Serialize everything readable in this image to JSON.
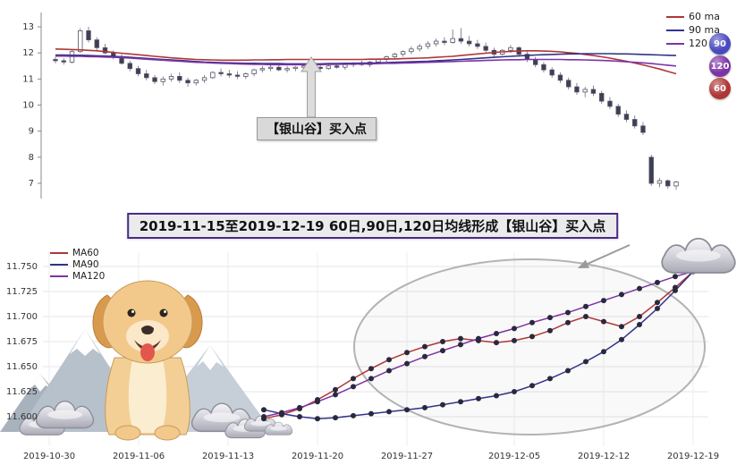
{
  "banner": {
    "text": "2019-11-15至2019-12-19 60日,90日,120日均线形成【银山谷】买入点"
  },
  "top_chart": {
    "annotation_label": "【银山谷】买入点",
    "legend": [
      {
        "label": "60 ma",
        "color": "#b03636"
      },
      {
        "label": "90 ma",
        "color": "#32328c"
      },
      {
        "label": "120 ma",
        "color": "#7c33a5"
      }
    ],
    "badges": [
      {
        "label": "90",
        "color": "#4a4ac0"
      },
      {
        "label": "120",
        "color": "#7c33a5"
      },
      {
        "label": "60",
        "color": "#b03636"
      }
    ]
  },
  "bottom_chart": {
    "legend": [
      {
        "label": "MA60",
        "color": "#b03636"
      },
      {
        "label": "MA90",
        "color": "#32328c"
      },
      {
        "label": "MA120",
        "color": "#7c33a5"
      }
    ]
  },
  "chart_data": [
    {
      "type": "candlestick",
      "title": "",
      "ylim": [
        6.5,
        13.4
      ],
      "y_ticks": [
        7,
        8,
        9,
        10,
        11,
        12,
        13
      ],
      "x_axis": "hidden",
      "candles_ohlc": [
        [
          11.75,
          11.85,
          11.6,
          11.7
        ],
        [
          11.7,
          11.8,
          11.55,
          11.65
        ],
        [
          11.65,
          12.1,
          11.6,
          12.05
        ],
        [
          12.05,
          12.95,
          12.0,
          12.85
        ],
        [
          12.85,
          13.0,
          12.4,
          12.5
        ],
        [
          12.5,
          12.6,
          12.1,
          12.2
        ],
        [
          12.2,
          12.35,
          11.95,
          12.0
        ],
        [
          12.0,
          12.1,
          11.75,
          11.85
        ],
        [
          11.85,
          11.95,
          11.55,
          11.6
        ],
        [
          11.6,
          11.7,
          11.3,
          11.4
        ],
        [
          11.4,
          11.5,
          11.1,
          11.2
        ],
        [
          11.2,
          11.35,
          10.95,
          11.05
        ],
        [
          11.05,
          11.15,
          10.8,
          10.9
        ],
        [
          10.9,
          11.1,
          10.75,
          11.0
        ],
        [
          11.0,
          11.2,
          10.9,
          11.1
        ],
        [
          11.1,
          11.25,
          10.85,
          10.95
        ],
        [
          10.95,
          11.05,
          10.7,
          10.85
        ],
        [
          10.85,
          11.0,
          10.75,
          10.95
        ],
        [
          10.95,
          11.15,
          10.85,
          11.05
        ],
        [
          11.05,
          11.3,
          11.0,
          11.25
        ],
        [
          11.25,
          11.4,
          11.1,
          11.2
        ],
        [
          11.2,
          11.35,
          11.05,
          11.15
        ],
        [
          11.15,
          11.3,
          11.0,
          11.1
        ],
        [
          11.1,
          11.25,
          11.0,
          11.2
        ],
        [
          11.2,
          11.4,
          11.1,
          11.35
        ],
        [
          11.35,
          11.5,
          11.25,
          11.4
        ],
        [
          11.4,
          11.55,
          11.3,
          11.45
        ],
        [
          11.45,
          11.55,
          11.3,
          11.35
        ],
        [
          11.35,
          11.5,
          11.25,
          11.4
        ],
        [
          11.4,
          11.5,
          11.3,
          11.45
        ],
        [
          11.45,
          11.6,
          11.35,
          11.5
        ],
        [
          11.5,
          11.6,
          11.4,
          11.45
        ],
        [
          11.45,
          11.55,
          11.35,
          11.4
        ],
        [
          11.4,
          11.55,
          11.35,
          11.5
        ],
        [
          11.5,
          11.6,
          11.4,
          11.45
        ],
        [
          11.45,
          11.6,
          11.35,
          11.55
        ],
        [
          11.55,
          11.65,
          11.45,
          11.6
        ],
        [
          11.6,
          11.7,
          11.5,
          11.55
        ],
        [
          11.55,
          11.7,
          11.45,
          11.65
        ],
        [
          11.65,
          11.8,
          11.55,
          11.75
        ],
        [
          11.75,
          11.9,
          11.65,
          11.85
        ],
        [
          11.85,
          12.0,
          11.75,
          11.95
        ],
        [
          11.95,
          12.1,
          11.85,
          12.05
        ],
        [
          12.05,
          12.25,
          11.95,
          12.15
        ],
        [
          12.15,
          12.35,
          12.05,
          12.25
        ],
        [
          12.25,
          12.45,
          12.15,
          12.35
        ],
        [
          12.35,
          12.55,
          12.25,
          12.45
        ],
        [
          12.45,
          12.6,
          12.3,
          12.4
        ],
        [
          12.4,
          12.9,
          12.35,
          12.55
        ],
        [
          12.55,
          12.95,
          12.35,
          12.45
        ],
        [
          12.45,
          12.65,
          12.25,
          12.35
        ],
        [
          12.35,
          12.5,
          12.15,
          12.25
        ],
        [
          12.25,
          12.4,
          12.0,
          12.1
        ],
        [
          12.1,
          12.2,
          11.85,
          11.95
        ],
        [
          11.95,
          12.15,
          11.9,
          12.1
        ],
        [
          12.1,
          12.3,
          12.0,
          12.2
        ],
        [
          12.2,
          12.25,
          11.85,
          11.95
        ],
        [
          11.95,
          12.05,
          11.65,
          11.75
        ],
        [
          11.75,
          11.85,
          11.45,
          11.55
        ],
        [
          11.55,
          11.65,
          11.25,
          11.35
        ],
        [
          11.35,
          11.45,
          11.05,
          11.15
        ],
        [
          11.15,
          11.25,
          10.85,
          10.95
        ],
        [
          10.95,
          11.05,
          10.6,
          10.7
        ],
        [
          10.7,
          10.85,
          10.4,
          10.5
        ],
        [
          10.5,
          10.7,
          10.3,
          10.6
        ],
        [
          10.6,
          10.75,
          10.35,
          10.45
        ],
        [
          10.45,
          10.55,
          10.05,
          10.15
        ],
        [
          10.15,
          10.3,
          9.85,
          9.95
        ],
        [
          9.95,
          10.05,
          9.55,
          9.65
        ],
        [
          9.65,
          9.8,
          9.35,
          9.45
        ],
        [
          9.45,
          9.6,
          9.1,
          9.2
        ],
        [
          9.2,
          9.35,
          8.85,
          8.95
        ],
        [
          8.0,
          8.1,
          6.9,
          7.0
        ],
        [
          7.0,
          7.2,
          6.85,
          7.1
        ],
        [
          7.1,
          7.15,
          6.8,
          6.9
        ],
        [
          6.9,
          7.1,
          6.75,
          7.05
        ]
      ],
      "series": [
        {
          "name": "60 ma",
          "color": "#b03636",
          "values": [
            12.15,
            12.14,
            12.13,
            12.12,
            12.1,
            12.08,
            12.05,
            12.02,
            11.99,
            11.96,
            11.93,
            11.9,
            11.87,
            11.84,
            11.81,
            11.79,
            11.77,
            11.75,
            11.74,
            11.73,
            11.72,
            11.72,
            11.72,
            11.72,
            11.73,
            11.73,
            11.74,
            11.74,
            11.75,
            11.75,
            11.75,
            11.75,
            11.75,
            11.75,
            11.75,
            11.75,
            11.75,
            11.75,
            11.76,
            11.76,
            11.77,
            11.77,
            11.78,
            11.79,
            11.8,
            11.81,
            11.83,
            11.85,
            11.87,
            11.9,
            11.93,
            11.96,
            11.99,
            12.02,
            12.04,
            12.06,
            12.07,
            12.08,
            12.08,
            12.07,
            12.06,
            12.04,
            12.01,
            11.98,
            11.94,
            11.9,
            11.85,
            11.8,
            11.74,
            11.68,
            11.61,
            11.54,
            11.46,
            11.38,
            11.29,
            11.2
          ]
        },
        {
          "name": "90 ma",
          "color": "#32328c",
          "values": [
            11.92,
            11.92,
            11.91,
            11.91,
            11.9,
            11.89,
            11.88,
            11.87,
            11.85,
            11.83,
            11.81,
            11.79,
            11.77,
            11.75,
            11.73,
            11.71,
            11.69,
            11.67,
            11.65,
            11.64,
            11.63,
            11.62,
            11.61,
            11.6,
            11.6,
            11.59,
            11.59,
            11.59,
            11.58,
            11.58,
            11.58,
            11.58,
            11.58,
            11.59,
            11.59,
            11.6,
            11.6,
            11.61,
            11.61,
            11.62,
            11.63,
            11.64,
            11.65,
            11.66,
            11.67,
            11.68,
            11.7,
            11.71,
            11.73,
            11.75,
            11.77,
            11.79,
            11.81,
            11.83,
            11.85,
            11.87,
            11.89,
            11.9,
            11.92,
            11.93,
            11.94,
            11.95,
            11.96,
            11.96,
            11.97,
            11.97,
            11.97,
            11.97,
            11.96,
            11.96,
            11.95,
            11.94,
            11.93,
            11.92,
            11.91,
            11.9
          ]
        },
        {
          "name": "120 ma",
          "color": "#7c33a5",
          "values": [
            11.88,
            11.88,
            11.87,
            11.87,
            11.86,
            11.85,
            11.84,
            11.83,
            11.82,
            11.8,
            11.78,
            11.76,
            11.74,
            11.72,
            11.7,
            11.68,
            11.66,
            11.64,
            11.63,
            11.61,
            11.6,
            11.59,
            11.58,
            11.57,
            11.56,
            11.56,
            11.55,
            11.55,
            11.55,
            11.55,
            11.55,
            11.55,
            11.55,
            11.56,
            11.56,
            11.57,
            11.57,
            11.58,
            11.58,
            11.59,
            11.6,
            11.6,
            11.61,
            11.62,
            11.63,
            11.64,
            11.65,
            11.66,
            11.67,
            11.68,
            11.69,
            11.7,
            11.71,
            11.72,
            11.73,
            11.74,
            11.74,
            11.75,
            11.75,
            11.75,
            11.75,
            11.75,
            11.74,
            11.74,
            11.73,
            11.72,
            11.71,
            11.7,
            11.68,
            11.66,
            11.64,
            11.62,
            11.59,
            11.56,
            11.53,
            11.5
          ]
        }
      ],
      "annotation": "【银山谷】买入点"
    },
    {
      "type": "line",
      "ylim": [
        11.59,
        11.757
      ],
      "y_ticks": [
        11.6,
        11.625,
        11.65,
        11.675,
        11.7,
        11.725,
        11.75
      ],
      "x_tick_labels": [
        "2019-10-30",
        "2019-11-06",
        "2019-11-13",
        "2019-11-20",
        "2019-11-27",
        "2019-12-05",
        "2019-12-12",
        "2019-12-19"
      ],
      "x_tick_slots": [
        0,
        5,
        10,
        15,
        20,
        26,
        31,
        36
      ],
      "total_slots": 37,
      "start_slot": 12,
      "x_dates": [
        "2019-11-15",
        "2019-11-18",
        "2019-11-19",
        "2019-11-20",
        "2019-11-21",
        "2019-11-22",
        "2019-11-25",
        "2019-11-26",
        "2019-11-27",
        "2019-11-28",
        "2019-11-29",
        "2019-12-02",
        "2019-12-03",
        "2019-12-04",
        "2019-12-05",
        "2019-12-06",
        "2019-12-09",
        "2019-12-10",
        "2019-12-11",
        "2019-12-12",
        "2019-12-13",
        "2019-12-16",
        "2019-12-17",
        "2019-12-18",
        "2019-12-19"
      ],
      "series": [
        {
          "name": "MA60",
          "color": "#b03636",
          "values": [
            11.598,
            11.602,
            11.608,
            11.617,
            11.627,
            11.638,
            11.648,
            11.657,
            11.664,
            11.67,
            11.675,
            11.678,
            11.676,
            11.674,
            11.676,
            11.68,
            11.686,
            11.694,
            11.7,
            11.695,
            11.69,
            11.7,
            11.714,
            11.729,
            11.745
          ]
        },
        {
          "name": "MA90",
          "color": "#32328c",
          "values": [
            11.607,
            11.603,
            11.6,
            11.598,
            11.599,
            11.601,
            11.603,
            11.605,
            11.607,
            11.609,
            11.612,
            11.615,
            11.618,
            11.621,
            11.625,
            11.631,
            11.638,
            11.646,
            11.655,
            11.665,
            11.677,
            11.692,
            11.708,
            11.726,
            11.745
          ]
        },
        {
          "name": "MA120",
          "color": "#7c33a5",
          "values": [
            11.6,
            11.604,
            11.609,
            11.615,
            11.622,
            11.63,
            11.638,
            11.646,
            11.653,
            11.66,
            11.666,
            11.672,
            11.678,
            11.683,
            11.688,
            11.694,
            11.699,
            11.704,
            11.71,
            11.716,
            11.722,
            11.728,
            11.734,
            11.74,
            11.745
          ]
        }
      ]
    }
  ]
}
